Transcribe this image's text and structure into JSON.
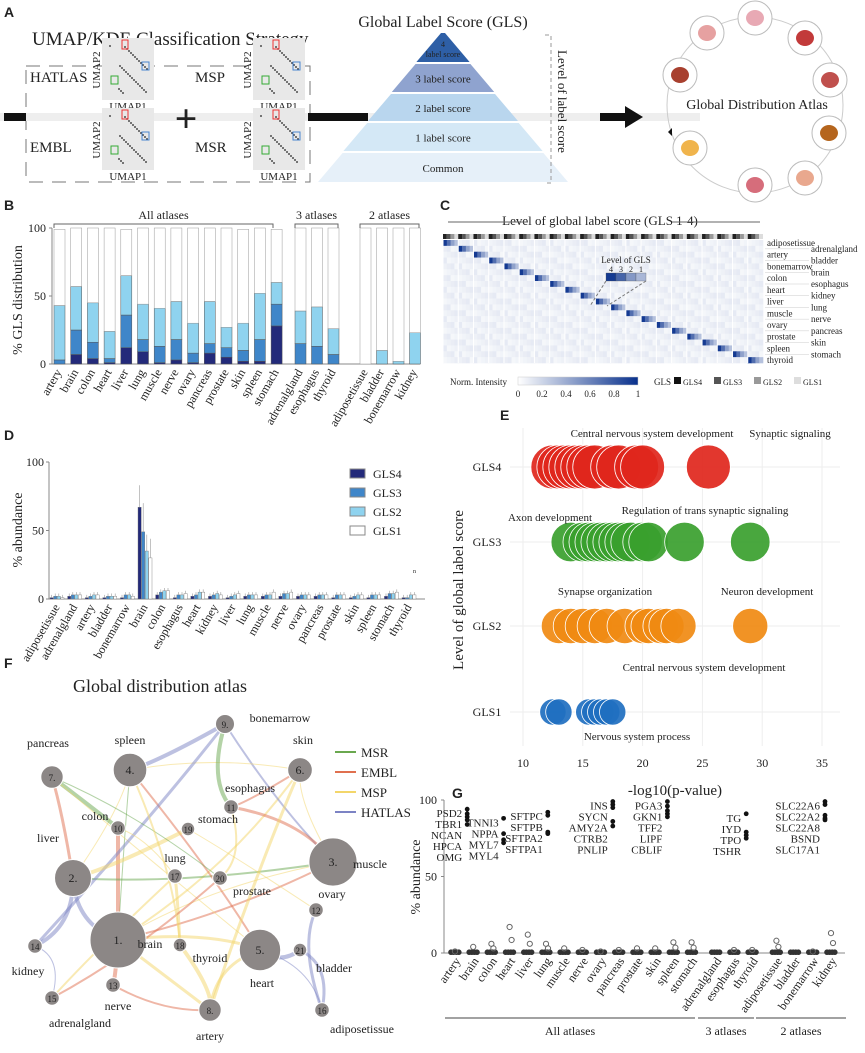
{
  "panels": {
    "A": "A",
    "B": "B",
    "C": "C",
    "D": "D",
    "E": "E",
    "F": "F",
    "G": "G"
  },
  "panel_a": {
    "strategy_title": "UMAP/KDE Classification Strategy",
    "atlases": [
      "HATLAS",
      "MSP",
      "EMBL",
      "MSR"
    ],
    "umap_x": "UMAP1",
    "umap_y": "UMAP2",
    "plus": "+",
    "gls_title": "Global Label Score (GLS)",
    "pyramid": [
      "4\nlabel score",
      "3 label score",
      "2 label score",
      "1 label score",
      "Common"
    ],
    "pyramid_colors": [
      "#2e5fa6",
      "#8fa3cf",
      "#b9d6ee",
      "#d4e8f6",
      "#e6f0f9"
    ],
    "level_axis": "Level of label score",
    "atlas_title": "Global Distribution Atlas"
  },
  "colors": {
    "GLS4": "#232a7a",
    "GLS3": "#3f86c9",
    "GLS2": "#8fd3ef",
    "GLS1": "#ffffff",
    "MSR": "#6aa84f",
    "EMBL": "#e0704f",
    "MSP": "#f3d66a",
    "HATLAS": "#7c83c4"
  },
  "chart_data": [
    {
      "id": "B",
      "type": "bar",
      "stacked": true,
      "ylabel": "% GLS distribution",
      "ylim": [
        0,
        100
      ],
      "yticks": [
        0,
        50,
        100
      ],
      "groups": [
        {
          "label": "All atlases",
          "count": 14
        },
        {
          "label": "3 atlases",
          "count": 3
        },
        {
          "label": "2 atlases",
          "count": 4
        }
      ],
      "categories": [
        "artery",
        "brain",
        "colon",
        "heart",
        "liver",
        "lung",
        "muscle",
        "nerve",
        "ovary",
        "pancreas",
        "prostate",
        "skin",
        "spleen",
        "stomach",
        "adrenalgland",
        "esophagus",
        "thyroid",
        "adiposetissue",
        "bladder",
        "bonemarrow",
        "kidney"
      ],
      "series": [
        {
          "name": "GLS4",
          "values": [
            0,
            7,
            4,
            1,
            12,
            9,
            1,
            3,
            1,
            8,
            5,
            2,
            2,
            28,
            0,
            0,
            0,
            0,
            0,
            0,
            0
          ]
        },
        {
          "name": "GLS3",
          "values": [
            3,
            18,
            12,
            3,
            24,
            9,
            12,
            15,
            7,
            7,
            7,
            8,
            16,
            16,
            15,
            13,
            7,
            0,
            0,
            0,
            0
          ]
        },
        {
          "name": "GLS2",
          "values": [
            40,
            32,
            29,
            20,
            29,
            26,
            28,
            28,
            22,
            31,
            15,
            20,
            34,
            16,
            24,
            29,
            19,
            0,
            10,
            2,
            23
          ]
        },
        {
          "name": "GLS1",
          "values": [
            56,
            43,
            55,
            76,
            34,
            56,
            59,
            54,
            70,
            54,
            73,
            69,
            48,
            39,
            61,
            58,
            74,
            100,
            90,
            98,
            77
          ]
        }
      ]
    },
    {
      "id": "C",
      "type": "heatmap",
      "title": "Level of global label score (GLS 1-4)",
      "rows": [
        "adiposetissue",
        "adrenalgland",
        "artery",
        "bladder",
        "bonemarrow",
        "brain",
        "colon",
        "esophagus",
        "heart",
        "kidney",
        "liver",
        "lung",
        "muscle",
        "nerve",
        "ovary",
        "pancreas",
        "prostate",
        "skin",
        "spleen",
        "stomach",
        "thyroid"
      ],
      "inset_title": "Level of GLS",
      "inset_levels": [
        "4",
        "3",
        "2",
        "1"
      ],
      "colorbar_title": "Norm. Intensity",
      "colorbar_ticks": [
        "1",
        "0.8",
        "0.6",
        "0.4",
        "0.2",
        "0"
      ],
      "gls_legend_title": "GLS",
      "gls_legend": [
        "GLS4",
        "GLS3",
        "GLS2",
        "GLS1"
      ]
    },
    {
      "id": "D",
      "type": "bar",
      "ylabel": "% abundance",
      "ylim": [
        0,
        100
      ],
      "yticks": [
        0,
        50,
        100
      ],
      "categories": [
        "adiposetissue",
        "adrenalgland",
        "artery",
        "bladder",
        "bonemarrow",
        "brain",
        "colon",
        "esophagus",
        "heart",
        "kidney",
        "liver",
        "lung",
        "muscle",
        "nerve",
        "ovary",
        "pancreas",
        "prostate",
        "skin",
        "spleen",
        "stomach",
        "thyroid"
      ],
      "legend": [
        "GLS4",
        "GLS3",
        "GLS2",
        "GLS1"
      ],
      "legend_position": "top-right",
      "series": [
        {
          "name": "GLS4",
          "values": [
            1,
            2,
            1,
            1,
            1,
            67,
            3,
            1,
            2,
            2,
            1,
            2,
            2,
            2,
            2,
            2,
            1,
            1,
            1,
            2,
            1
          ]
        },
        {
          "name": "GLS3",
          "values": [
            2,
            3,
            2,
            2,
            3,
            49,
            5,
            3,
            3,
            3,
            2,
            3,
            3,
            4,
            3,
            3,
            3,
            2,
            3,
            4,
            1
          ]
        },
        {
          "name": "GLS2",
          "values": [
            2,
            3,
            3,
            2,
            3,
            35,
            6,
            3,
            5,
            4,
            3,
            3,
            3,
            4,
            3,
            3,
            3,
            3,
            3,
            4,
            3
          ]
        },
        {
          "name": "GLS1",
          "values": [
            1,
            3,
            3,
            2,
            2,
            30,
            6,
            4,
            5,
            3,
            4,
            3,
            5,
            5,
            3,
            3,
            3,
            3,
            3,
            5,
            3
          ]
        }
      ],
      "brain_error": [
        16,
        21,
        12,
        14
      ],
      "annotation": "n"
    },
    {
      "id": "E",
      "type": "scatter",
      "xlabel": "-log10(p-value)",
      "ylabel": "Level of global label score",
      "xlim": [
        8,
        37
      ],
      "xticks": [
        10,
        15,
        20,
        25,
        30,
        35
      ],
      "categories": [
        "GLS1",
        "GLS2",
        "GLS3",
        "GLS4"
      ],
      "series": [
        {
          "name": "GLS4",
          "color": "#e0261c",
          "x": [
            12.5,
            13,
            13.5,
            14,
            14.5,
            15,
            15.5,
            16,
            17.5,
            18,
            19.5,
            20,
            25.5
          ],
          "size": [
            1,
            1,
            1,
            1,
            1,
            1,
            1,
            1,
            1,
            1,
            0.9,
            0.9,
            0.9
          ],
          "labels": [
            "Central nervous system development",
            "Synaptic signaling"
          ]
        },
        {
          "name": "GLS3",
          "color": "#3aa02e",
          "x": [
            14,
            15,
            15.5,
            16,
            16.5,
            17,
            17.5,
            18,
            18.5,
            19,
            20,
            20.5,
            23.5,
            29
          ],
          "size": [
            0.9,
            0.9,
            0.9,
            0.9,
            0.9,
            0.9,
            0.9,
            0.9,
            0.9,
            0.9,
            0.9,
            0.9,
            0.9,
            0.9
          ],
          "labels": [
            "Axon development",
            "Regulation of trans synaptic signaling"
          ]
        },
        {
          "name": "GLS2",
          "color": "#f08a12",
          "x": [
            13,
            14,
            15,
            16,
            17,
            18.5,
            20,
            20.5,
            21.5,
            22,
            23,
            29
          ],
          "size": [
            0.8,
            0.8,
            0.8,
            0.8,
            0.8,
            0.8,
            0.8,
            0.8,
            0.8,
            0.8,
            0.8,
            0.8
          ],
          "labels": [
            "Synapse  organization",
            "Neuron development"
          ]
        },
        {
          "name": "GLS1",
          "color": "#1f6fc0",
          "x": [
            12.5,
            13,
            15.5,
            16,
            16.5,
            17,
            17.5
          ],
          "size": [
            0.6,
            0.6,
            0.6,
            0.6,
            0.6,
            0.6,
            0.6
          ],
          "labels": [
            "Central nervous system development",
            "Nervous system process"
          ]
        }
      ]
    },
    {
      "id": "G",
      "type": "scatter",
      "ylabel": "% abundance",
      "ylim": [
        0,
        100
      ],
      "yticks": [
        0,
        50,
        100
      ],
      "categories": [
        "artery",
        "brain",
        "colon",
        "heart",
        "liver",
        "lung",
        "muscle",
        "nerve",
        "ovary",
        "pancreas",
        "prostate",
        "skin",
        "spleen",
        "stomach",
        "adrenalgland",
        "esophagus",
        "thyroid",
        "adiposetissue",
        "bladder",
        "bonemarrow",
        "kidney"
      ],
      "groups": [
        {
          "label": "All atlases",
          "count": 14
        },
        {
          "label": "3 atlases",
          "count": 3
        },
        {
          "label": "2 atlases",
          "count": 4
        }
      ],
      "outlier_max": [
        1,
        4,
        6,
        17,
        12,
        6,
        3,
        2,
        1,
        2,
        3,
        3,
        7,
        7,
        0,
        2,
        2,
        8,
        0,
        1,
        13
      ],
      "highlight_genes": [
        {
          "tissue": "brain",
          "genes": [
            "PSD2",
            "TBR1",
            "NCAN",
            "HPCA",
            "OMG"
          ],
          "values": [
            94,
            91,
            89,
            87,
            84
          ]
        },
        {
          "tissue": "heart",
          "genes": [
            "TNNI3",
            "NPPA",
            "MYL7",
            "MYL4"
          ],
          "values": [
            88,
            78,
            74,
            72
          ]
        },
        {
          "tissue": "liver",
          "genes": [
            "SFTPC",
            "SFTPB",
            "SFTPA2",
            "SFTPA1"
          ],
          "values": [
            92,
            90,
            79,
            78
          ]
        },
        {
          "tissue": "pancreas",
          "genes": [
            "INS",
            "SYCN",
            "AMY2A",
            "CTRB2",
            "PNLIP"
          ],
          "values": [
            99,
            97,
            95,
            86,
            83
          ]
        },
        {
          "tissue": "spleen",
          "genes": [
            "PGA3",
            "GKN1",
            "TFF2",
            "LIPF",
            "CBLIF"
          ],
          "values": [
            99,
            96,
            93,
            91,
            89
          ]
        },
        {
          "tissue": "thyroid",
          "genes": [
            "TG",
            "IYD",
            "TPO",
            "TSHR"
          ],
          "values": [
            91,
            79,
            77,
            75
          ]
        },
        {
          "tissue": "kidney",
          "genes": [
            "SLC22A6",
            "SLC22A2",
            "SLC22A8",
            "BSND",
            "SLC17A1"
          ],
          "values": [
            99,
            97,
            90,
            88,
            87
          ]
        }
      ]
    }
  ],
  "panel_f": {
    "title": "Global distribution atlas",
    "legend": [
      "MSR",
      "EMBL",
      "MSP",
      "HATLAS"
    ],
    "nodes": [
      {
        "n": "1.",
        "label": "brain",
        "size": 5
      },
      {
        "n": "2.",
        "label": "liver",
        "size": 3.3
      },
      {
        "n": "3.",
        "label": "muscle",
        "size": 4.3
      },
      {
        "n": "4.",
        "label": "spleen",
        "size": 3
      },
      {
        "n": "5.",
        "label": "heart",
        "size": 3.7
      },
      {
        "n": "6.",
        "label": "skin",
        "size": 2.2
      },
      {
        "n": "7.",
        "label": "pancreas",
        "size": 2
      },
      {
        "n": "8.",
        "label": "artery",
        "size": 2
      },
      {
        "n": "9.",
        "label": "bonemarrow",
        "size": 1.7
      },
      {
        "n": "10",
        "label": "colon",
        "size": 1.3
      },
      {
        "n": "11",
        "label": "esophagus",
        "size": 1.3
      },
      {
        "n": "12",
        "label": "ovary",
        "size": 1.3
      },
      {
        "n": "13",
        "label": "nerve",
        "size": 1.3
      },
      {
        "n": "14",
        "label": "kidney",
        "size": 1.3
      },
      {
        "n": "15",
        "label": "adrenalgland",
        "size": 1.3
      },
      {
        "n": "16",
        "label": "adiposetissue",
        "size": 1.3
      },
      {
        "n": "17",
        "label": "lung",
        "size": 1.3
      },
      {
        "n": "18",
        "label": "thyroid",
        "size": 1.2
      },
      {
        "n": "19",
        "label": "stomach",
        "size": 1.2
      },
      {
        "n": "20",
        "label": "prostate",
        "size": 1.3
      },
      {
        "n": "21",
        "label": "bladder",
        "size": 1.2
      }
    ],
    "edges": [
      [
        0,
        2,
        "MSP"
      ],
      [
        0,
        2,
        "EMBL"
      ],
      [
        0,
        4,
        "MSP"
      ],
      [
        0,
        1,
        "HATLAS"
      ],
      [
        0,
        3,
        "MSR"
      ],
      [
        0,
        5,
        "MSP"
      ],
      [
        0,
        7,
        "MSP"
      ],
      [
        0,
        9,
        "EMBL"
      ],
      [
        1,
        3,
        "MSP"
      ],
      [
        1,
        2,
        "MSR"
      ],
      [
        1,
        6,
        "EMBL"
      ],
      [
        1,
        13,
        "HATLAS"
      ],
      [
        2,
        5,
        "MSP"
      ],
      [
        2,
        8,
        "HATLAS"
      ],
      [
        2,
        10,
        "EMBL"
      ],
      [
        3,
        8,
        "HATLAS"
      ],
      [
        3,
        5,
        "MSP"
      ],
      [
        3,
        4,
        "EMBL"
      ],
      [
        4,
        7,
        "MSP"
      ],
      [
        4,
        20,
        "HATLAS"
      ],
      [
        4,
        15,
        "HATLAS"
      ],
      [
        5,
        10,
        "EMBL"
      ],
      [
        5,
        7,
        "MSP"
      ],
      [
        6,
        9,
        "MSR"
      ],
      [
        6,
        4,
        "MSP"
      ],
      [
        7,
        12,
        "EMBL"
      ],
      [
        8,
        13,
        "HATLAS"
      ],
      [
        8,
        10,
        "MSR"
      ],
      [
        9,
        16,
        "MSP"
      ],
      [
        10,
        19,
        "MSP"
      ],
      [
        11,
        15,
        "HATLAS"
      ],
      [
        12,
        0,
        "EMBL"
      ],
      [
        13,
        14,
        "HATLAS"
      ],
      [
        14,
        16,
        "MSP"
      ],
      [
        16,
        17,
        "MSP"
      ],
      [
        17,
        7,
        "MSP"
      ],
      [
        18,
        11,
        "MSP"
      ],
      [
        19,
        14,
        "EMBL"
      ],
      [
        20,
        15,
        "HATLAS"
      ],
      [
        1,
        18,
        "MSP"
      ],
      [
        6,
        19,
        "MSR"
      ],
      [
        3,
        17,
        "MSP"
      ]
    ]
  }
}
